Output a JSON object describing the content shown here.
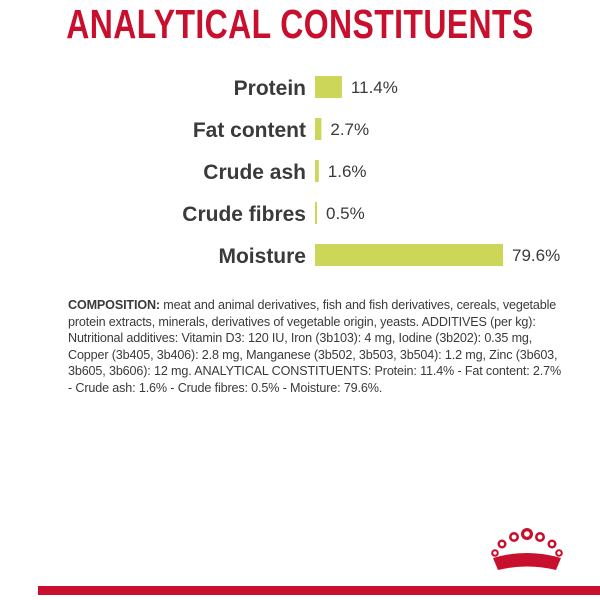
{
  "header": {
    "title": "ANALYTICAL CONSTITUENTS"
  },
  "chart_data": {
    "type": "bar",
    "orientation": "horizontal",
    "title": "ANALYTICAL CONSTITUENTS",
    "categories": [
      "Protein",
      "Fat content",
      "Crude ash",
      "Crude fibres",
      "Moisture"
    ],
    "values": [
      11.4,
      2.7,
      1.6,
      0.5,
      79.6
    ],
    "value_labels": [
      "11.4%",
      "2.7%",
      "1.6%",
      "0.5%",
      "79.6%"
    ],
    "xlim": [
      0,
      79.6
    ],
    "grid": false,
    "bar_color": "#ccd75a"
  },
  "composition": {
    "heading": "COMPOSITION:",
    "text": " meat and animal derivatives, fish and fish derivatives, cereals, vegetable protein extracts, minerals, derivatives of vegetable origin, yeasts. ADDITIVES (per kg): Nutritional additives: Vitamin D3: 120 IU, Iron (3b103): 4 mg, Iodine (3b202): 0.35 mg, Copper (3b405, 3b406): 2.8 mg, Manganese (3b502, 3b503, 3b504): 1.2 mg, Zinc (3b603, 3b605, 3b606): 12 mg. ANALYTICAL CONSTITUENTS: Protein: 11.4% - Fat content: 2.7% - Crude ash: 1.6% - Crude fibres: 0.5% - Moisture: 79.6%."
  },
  "colors": {
    "brand_red": "#c8102e",
    "bar": "#ccd75a",
    "text": "#3a3a3a"
  },
  "logo": {
    "icon": "royal-crown-icon"
  }
}
